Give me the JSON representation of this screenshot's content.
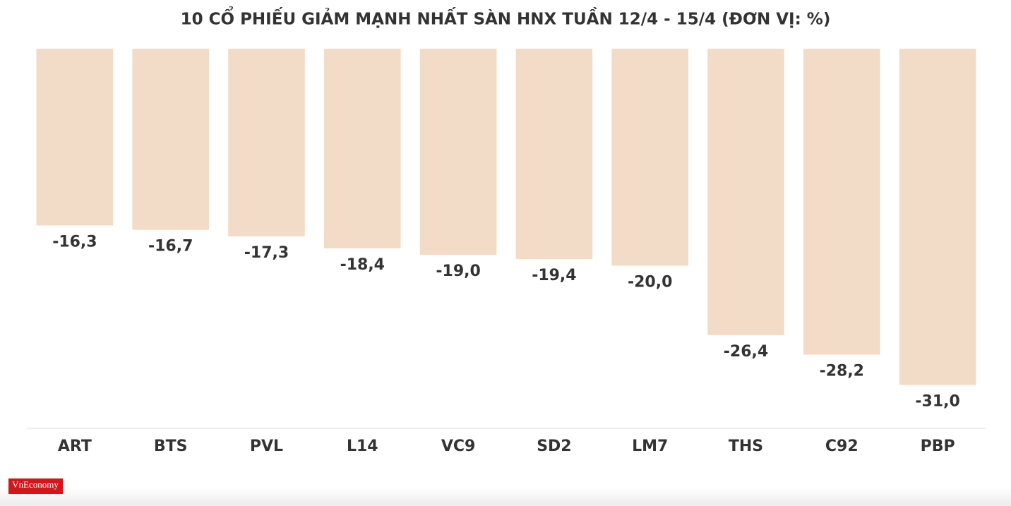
{
  "chart_data": {
    "type": "bar",
    "title": "10 CỔ PHIẾU GIẢM MẠNH NHẤT SÀN HNX TUẦN 12/4 - 15/4 (ĐƠN VỊ: %)",
    "categories": [
      "ART",
      "BTS",
      "PVL",
      "L14",
      "VC9",
      "SD2",
      "LM7",
      "THS",
      "C92",
      "PBP"
    ],
    "values": [
      -16.3,
      -16.7,
      -17.3,
      -18.4,
      -19.0,
      -19.4,
      -20.0,
      -26.4,
      -28.2,
      -31.0
    ],
    "value_labels": [
      "-16,3",
      "-16,7",
      "-17,3",
      "-18,4",
      "-19,0",
      "-19,4",
      "-20,0",
      "-26,4",
      "-28,2",
      "-31,0"
    ],
    "color": "#f2dcc8",
    "ylim": [
      -35,
      0
    ],
    "grid": false
  },
  "logo": "VnEconomy"
}
